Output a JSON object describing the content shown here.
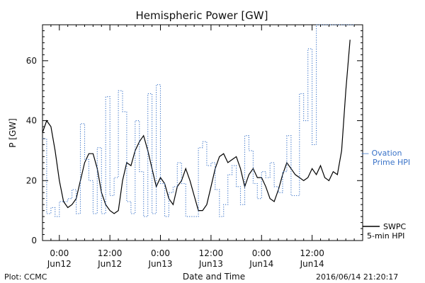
{
  "chart_data": {
    "type": "line",
    "title": "Hemispheric Power [GW]",
    "xlabel": "Date and Time",
    "ylabel": "P [GW]",
    "ylim": [
      0,
      72
    ],
    "xlim": [
      "2016-06-11 20:00",
      "2016-06-15 00:00"
    ],
    "yticks": [
      0,
      20,
      40,
      60
    ],
    "xticks": [
      {
        "x": "2016-06-12 00:00",
        "time": "0:00",
        "date": "Jun12"
      },
      {
        "x": "2016-06-12 12:00",
        "time": "12:00",
        "date": "Jun12"
      },
      {
        "x": "2016-06-13 00:00",
        "time": "0:00",
        "date": "Jun13"
      },
      {
        "x": "2016-06-13 12:00",
        "time": "12:00",
        "date": "Jun13"
      },
      {
        "x": "2016-06-14 00:00",
        "time": "0:00",
        "date": "Jun14"
      },
      {
        "x": "2016-06-14 12:00",
        "time": "12:00",
        "date": "Jun14"
      }
    ],
    "grid": false,
    "legend": "right",
    "series": [
      {
        "name": "SWPC 5-min HPI",
        "color": "#000000",
        "style": "solid",
        "x": [
          "2016-06-11 20:00",
          "2016-06-11 21:00",
          "2016-06-11 22:00",
          "2016-06-11 23:00",
          "2016-06-12 00:00",
          "2016-06-12 01:00",
          "2016-06-12 02:00",
          "2016-06-12 03:00",
          "2016-06-12 04:00",
          "2016-06-12 05:00",
          "2016-06-12 06:00",
          "2016-06-12 07:00",
          "2016-06-12 08:00",
          "2016-06-12 09:00",
          "2016-06-12 10:00",
          "2016-06-12 11:00",
          "2016-06-12 12:00",
          "2016-06-12 13:00",
          "2016-06-12 14:00",
          "2016-06-12 15:00",
          "2016-06-12 16:00",
          "2016-06-12 17:00",
          "2016-06-12 18:00",
          "2016-06-12 19:00",
          "2016-06-12 20:00",
          "2016-06-12 21:00",
          "2016-06-12 22:00",
          "2016-06-12 23:00",
          "2016-06-13 00:00",
          "2016-06-13 01:00",
          "2016-06-13 02:00",
          "2016-06-13 03:00",
          "2016-06-13 04:00",
          "2016-06-13 05:00",
          "2016-06-13 06:00",
          "2016-06-13 07:00",
          "2016-06-13 08:00",
          "2016-06-13 09:00",
          "2016-06-13 10:00",
          "2016-06-13 11:00",
          "2016-06-13 12:00",
          "2016-06-13 13:00",
          "2016-06-13 14:00",
          "2016-06-13 15:00",
          "2016-06-13 16:00",
          "2016-06-13 17:00",
          "2016-06-13 18:00",
          "2016-06-13 19:00",
          "2016-06-13 20:00",
          "2016-06-13 21:00",
          "2016-06-13 22:00",
          "2016-06-13 23:00",
          "2016-06-14 00:00",
          "2016-06-14 01:00",
          "2016-06-14 02:00",
          "2016-06-14 03:00",
          "2016-06-14 04:00",
          "2016-06-14 05:00",
          "2016-06-14 06:00",
          "2016-06-14 07:00",
          "2016-06-14 08:00",
          "2016-06-14 09:00",
          "2016-06-14 10:00",
          "2016-06-14 11:00",
          "2016-06-14 12:00",
          "2016-06-14 13:00",
          "2016-06-14 14:00",
          "2016-06-14 15:00",
          "2016-06-14 16:00",
          "2016-06-14 17:00",
          "2016-06-14 18:00",
          "2016-06-14 19:00",
          "2016-06-14 20:00",
          "2016-06-14 21:00"
        ],
        "values": [
          36,
          40,
          38,
          30,
          20,
          13,
          11,
          12,
          14,
          20,
          26,
          29,
          29,
          24,
          16,
          12,
          10,
          9,
          10,
          20,
          26,
          25,
          30,
          33,
          35,
          30,
          24,
          18,
          21,
          19,
          14,
          12,
          18,
          20,
          24,
          20,
          15,
          10,
          10,
          12,
          18,
          24,
          28,
          29,
          26,
          27,
          28,
          24,
          18,
          22,
          24,
          21,
          21,
          18,
          14,
          13,
          17,
          22,
          26,
          24,
          22,
          21,
          20,
          21,
          24,
          22,
          25,
          21,
          20,
          23,
          22,
          30,
          50,
          67
        ]
      },
      {
        "name": "Ovation Prime HPI",
        "color": "#3a73c8",
        "style": "dotted",
        "x": [
          "2016-06-11 20:00",
          "2016-06-11 21:00",
          "2016-06-11 22:00",
          "2016-06-11 23:00",
          "2016-06-12 00:00",
          "2016-06-12 01:00",
          "2016-06-12 02:00",
          "2016-06-12 03:00",
          "2016-06-12 04:00",
          "2016-06-12 05:00",
          "2016-06-12 06:00",
          "2016-06-12 07:00",
          "2016-06-12 08:00",
          "2016-06-12 09:00",
          "2016-06-12 10:00",
          "2016-06-12 11:00",
          "2016-06-12 12:00",
          "2016-06-12 13:00",
          "2016-06-12 14:00",
          "2016-06-12 15:00",
          "2016-06-12 16:00",
          "2016-06-12 17:00",
          "2016-06-12 18:00",
          "2016-06-12 19:00",
          "2016-06-12 20:00",
          "2016-06-12 21:00",
          "2016-06-12 22:00",
          "2016-06-12 23:00",
          "2016-06-13 00:00",
          "2016-06-13 01:00",
          "2016-06-13 02:00",
          "2016-06-13 03:00",
          "2016-06-13 04:00",
          "2016-06-13 05:00",
          "2016-06-13 06:00",
          "2016-06-13 07:00",
          "2016-06-13 08:00",
          "2016-06-13 09:00",
          "2016-06-13 10:00",
          "2016-06-13 11:00",
          "2016-06-13 12:00",
          "2016-06-13 13:00",
          "2016-06-13 14:00",
          "2016-06-13 15:00",
          "2016-06-13 16:00",
          "2016-06-13 17:00",
          "2016-06-13 18:00",
          "2016-06-13 19:00",
          "2016-06-13 20:00",
          "2016-06-13 21:00",
          "2016-06-13 22:00",
          "2016-06-13 23:00",
          "2016-06-14 00:00",
          "2016-06-14 01:00",
          "2016-06-14 02:00",
          "2016-06-14 03:00",
          "2016-06-14 04:00",
          "2016-06-14 05:00",
          "2016-06-14 06:00",
          "2016-06-14 07:00",
          "2016-06-14 08:00",
          "2016-06-14 09:00",
          "2016-06-14 10:00",
          "2016-06-14 11:00",
          "2016-06-14 12:00",
          "2016-06-14 13:00",
          "2016-06-14 14:00",
          "2016-06-14 15:00",
          "2016-06-14 16:00",
          "2016-06-14 17:00",
          "2016-06-14 18:00",
          "2016-06-14 19:00",
          "2016-06-14 20:00",
          "2016-06-14 21:00"
        ],
        "values": [
          34,
          9,
          11,
          8,
          13,
          13,
          14,
          17,
          9,
          39,
          27,
          20,
          9,
          31,
          9,
          48,
          15,
          21,
          50,
          43,
          13,
          9,
          40,
          23,
          8,
          49,
          9,
          52,
          19,
          8,
          16,
          18,
          26,
          19,
          8,
          8,
          8,
          31,
          33,
          25,
          26,
          17,
          8,
          12,
          22,
          25,
          18,
          12,
          35,
          30,
          19,
          14,
          23,
          21,
          26,
          18,
          16,
          23,
          35,
          15,
          15,
          49,
          40,
          64,
          32,
          72,
          72,
          72,
          72,
          72,
          72,
          72,
          72,
          72
        ]
      }
    ],
    "legend_entries": [
      {
        "line1": "— Ovation",
        "line2": "Prime HPI",
        "color": "#3a73c8"
      },
      {
        "line1": "SWPC",
        "line2": "5-min HPI",
        "color": "#000000"
      }
    ],
    "footer_left": "Plot: CCMC",
    "footer_right": "2016/06/14 21:20:17"
  }
}
